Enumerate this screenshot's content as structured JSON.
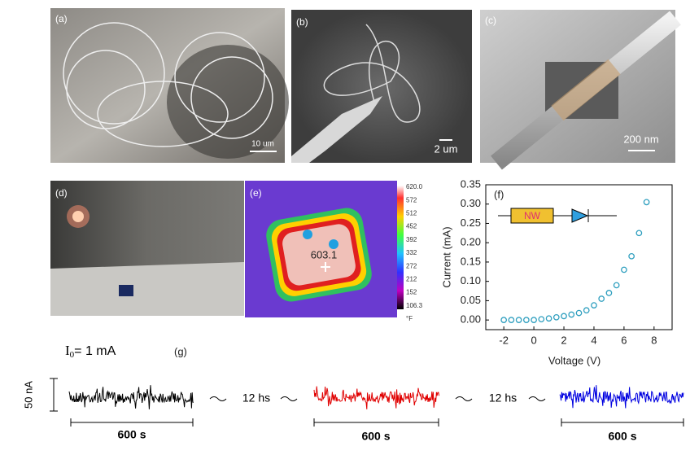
{
  "panels": {
    "a": {
      "label": "(a)",
      "scale": "10 um"
    },
    "b": {
      "label": "(b)",
      "scale": "2 um"
    },
    "c": {
      "label": "(c)",
      "scale": "200 nm"
    },
    "d": {
      "label": "(d)"
    },
    "e": {
      "label": "(e)",
      "readout": "603.1",
      "colorbar": [
        "620.0",
        "572",
        "512",
        "452",
        "392",
        "332",
        "272",
        "212",
        "152",
        "106.3",
        "°F"
      ]
    },
    "f": {
      "label": "(f)",
      "inset_text": "NW"
    },
    "g": {
      "label": "(g)",
      "current_symbol": "I",
      "current_sub": "0",
      "current_rest": "= 1 mA",
      "vscale": "50 nA",
      "gap1": "12 hs",
      "gap2": "12 hs",
      "time1": "600 s",
      "time2": "600 s",
      "time3": "600 s"
    }
  },
  "chart_data": {
    "type": "scatter",
    "x_label": "Voltage (V)",
    "y_label": "Current (mA)",
    "x": [
      -2,
      -1.5,
      -1,
      -0.5,
      0,
      0.5,
      1,
      1.5,
      2,
      2.5,
      3,
      3.5,
      4,
      4.5,
      5,
      5.5,
      6,
      6.5,
      7,
      7.5
    ],
    "series": [
      {
        "color": "#2f9fbf",
        "values": [
          0,
          0,
          0,
          0,
          0,
          0.002,
          0.004,
          0.007,
          0.01,
          0.014,
          0.018,
          0.025,
          0.038,
          0.055,
          0.07,
          0.09,
          0.13,
          0.165,
          0.225,
          0.305
        ]
      }
    ],
    "xlim": [
      -3.2,
      9.2
    ],
    "ylim": [
      -0.025,
      0.35
    ],
    "xticks": [
      -2,
      0,
      2,
      4,
      6,
      8
    ],
    "yticks": [
      {
        "value": 0,
        "label": "0.00"
      },
      {
        "value": 0.05,
        "label": "0.05"
      },
      {
        "value": 0.1,
        "label": "0.10"
      },
      {
        "value": 0.15,
        "label": "0.15"
      },
      {
        "value": 0.2,
        "label": "0.20"
      },
      {
        "value": 0.25,
        "label": "0.25"
      },
      {
        "value": 0.3,
        "label": "0.30"
      },
      {
        "value": 0.35,
        "label": "0.35"
      }
    ]
  }
}
